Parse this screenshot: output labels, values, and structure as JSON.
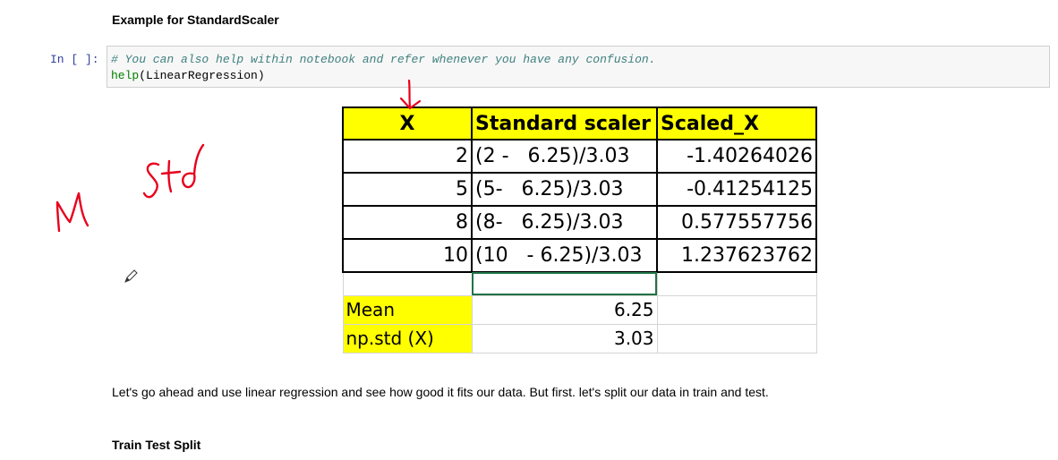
{
  "notebook": {
    "heading_example": "Example for StandardScaler",
    "cell_prompt": "In [ ]:",
    "code_comment": "# You can also help within notebook and refer whenever you have any confusion.",
    "code_fn": "help",
    "code_args": "(LinearRegression)",
    "paragraph": "Let's go ahead and use linear regression and see how good it fits our data. But first. let's split our data in train and test.",
    "heading_tts": "Train Test Split"
  },
  "sheet": {
    "headers": [
      "X",
      "Standard scaler",
      "Scaled_X"
    ],
    "rows": [
      {
        "x": "2",
        "formula": "(2 -   6.25)/3.03",
        "scaled": "-1.40264026"
      },
      {
        "x": "5",
        "formula": "(5-   6.25)/3.03",
        "scaled": "-0.41254125"
      },
      {
        "x": "8",
        "formula": "(8-   6.25)/3.03",
        "scaled": "0.577557756"
      },
      {
        "x": "10",
        "formula": "(10   - 6.25)/3.03",
        "scaled": "1.237623762"
      }
    ],
    "stats": [
      {
        "label": "Mean",
        "value": "6.25"
      },
      {
        "label": "np.std (X)",
        "value": "3.03"
      }
    ],
    "highlight_color": "#ffff00",
    "selection_color": "#217346"
  },
  "annotations": {
    "ink_color": "#e8001c",
    "handwritten_mu": "μ",
    "handwritten_std": "std",
    "cursor": "pencil-cursor-icon"
  }
}
